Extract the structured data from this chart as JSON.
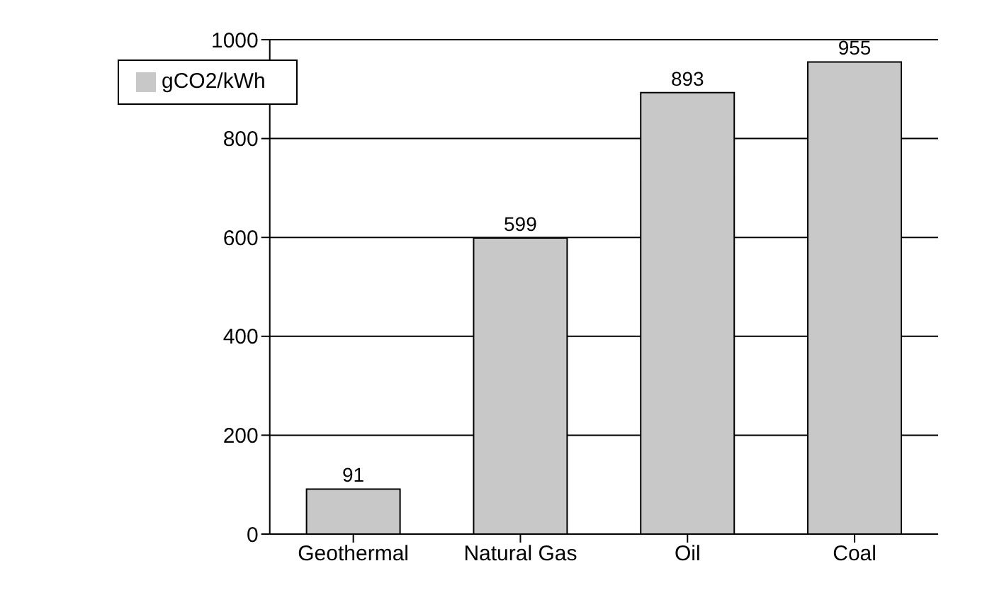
{
  "chart_data": {
    "type": "bar",
    "categories": [
      "Geothermal",
      "Natural Gas",
      "Oil",
      "Coal"
    ],
    "series": [
      {
        "name": "gCO2/kWh",
        "color": "#c8c8c8",
        "values": [
          91,
          599,
          893,
          955
        ]
      }
    ],
    "ylim": [
      0,
      1000
    ],
    "yticks": [
      0,
      200,
      400,
      600,
      800,
      1000
    ],
    "grid": "y",
    "legend": "top left",
    "data_labels": true
  }
}
